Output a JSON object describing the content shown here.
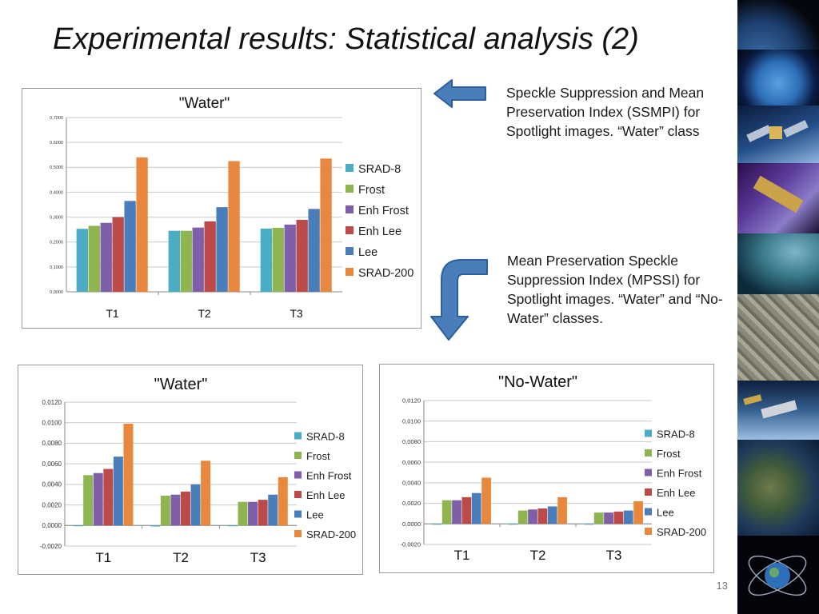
{
  "slide": {
    "title": "Experimental results: Statistical analysis (2)",
    "page_number": "13",
    "caption_ssmpi": "Speckle Suppression and Mean Preservation Index (SSMPI) for Spotlight images.  “Water” class",
    "caption_mpssi": "Mean Preservation Speckle Suppression Index (MPSSI) for Spotlight images. “Water” and “No-Water” classes."
  },
  "colors": {
    "SRAD-8": "#4bacc6",
    "Frost": "#8fb550",
    "Enh Frost": "#7f5fa8",
    "Enh Lee": "#bb4a48",
    "Lee": "#4a7ebb",
    "SRAD-200": "#e8883e",
    "arrow_fill": "#4a7ebb",
    "arrow_stroke": "#2f5f9a"
  },
  "chart_data": [
    {
      "id": "ssmpi-water",
      "type": "bar",
      "title": "\"Water\"",
      "categories": [
        "T1",
        "T2",
        "T3"
      ],
      "series": [
        {
          "name": "SRAD-8",
          "values": [
            0.253,
            0.245,
            0.254
          ]
        },
        {
          "name": "Frost",
          "values": [
            0.265,
            0.245,
            0.257
          ]
        },
        {
          "name": "Enh Frost",
          "values": [
            0.277,
            0.258,
            0.27
          ]
        },
        {
          "name": "Enh Lee",
          "values": [
            0.3,
            0.283,
            0.289
          ]
        },
        {
          "name": "Lee",
          "values": [
            0.365,
            0.34,
            0.333
          ]
        },
        {
          "name": "SRAD-200",
          "values": [
            0.54,
            0.525,
            0.535
          ]
        }
      ],
      "ylim": [
        0,
        0.7
      ],
      "yticks": [
        "0,0000",
        "0,1000",
        "0,2000",
        "0,3000",
        "0,4000",
        "0,5000",
        "0,6000",
        "0,7000"
      ],
      "grid": true,
      "legend": "right"
    },
    {
      "id": "mpssi-water",
      "type": "bar",
      "title": "\"Water\"",
      "categories": [
        "T1",
        "T2",
        "T3"
      ],
      "series": [
        {
          "name": "SRAD-8",
          "values": [
            0.0,
            -0.0001,
            0.0
          ]
        },
        {
          "name": "Frost",
          "values": [
            0.0049,
            0.0029,
            0.0023
          ]
        },
        {
          "name": "Enh Frost",
          "values": [
            0.0051,
            0.003,
            0.0023
          ]
        },
        {
          "name": "Enh Lee",
          "values": [
            0.0055,
            0.0033,
            0.0025
          ]
        },
        {
          "name": "Lee",
          "values": [
            0.0067,
            0.004,
            0.003
          ]
        },
        {
          "name": "SRAD-200",
          "values": [
            0.0099,
            0.0063,
            0.0047
          ]
        }
      ],
      "ylim": [
        -0.002,
        0.012
      ],
      "yticks": [
        "-0,0020",
        "0,0000",
        "0,0020",
        "0,0040",
        "0,0060",
        "0,0080",
        "0,0100",
        "0,0120"
      ],
      "grid": true,
      "legend": "right"
    },
    {
      "id": "mpssi-nowater",
      "type": "bar",
      "title": "\"No-Water\"",
      "categories": [
        "T1",
        "T2",
        "T3"
      ],
      "series": [
        {
          "name": "SRAD-8",
          "values": [
            0.0,
            0.0,
            0.0
          ]
        },
        {
          "name": "Frost",
          "values": [
            0.0023,
            0.0013,
            0.0011
          ]
        },
        {
          "name": "Enh Frost",
          "values": [
            0.0023,
            0.0014,
            0.0011
          ]
        },
        {
          "name": "Enh Lee",
          "values": [
            0.0026,
            0.0015,
            0.0012
          ]
        },
        {
          "name": "Lee",
          "values": [
            0.003,
            0.0017,
            0.0013
          ]
        },
        {
          "name": "SRAD-200",
          "values": [
            0.0045,
            0.0026,
            0.0022
          ]
        }
      ],
      "ylim": [
        -0.002,
        0.012
      ],
      "yticks": [
        "-0,0020",
        "0,0000",
        "0,0020",
        "0,0040",
        "0,0060",
        "0,0080",
        "0,0100",
        "0,0120"
      ],
      "grid": true,
      "legend": "right"
    }
  ],
  "photo_strip": [
    "earth-limb-photo",
    "americas-globe-photo",
    "satellite-photo",
    "solar-panel-satellite-photo",
    "earth-horizon-photo",
    "aerial-city-photo",
    "space-station-photo",
    "italy-satellite-photo",
    "orbit-diagram-photo"
  ]
}
